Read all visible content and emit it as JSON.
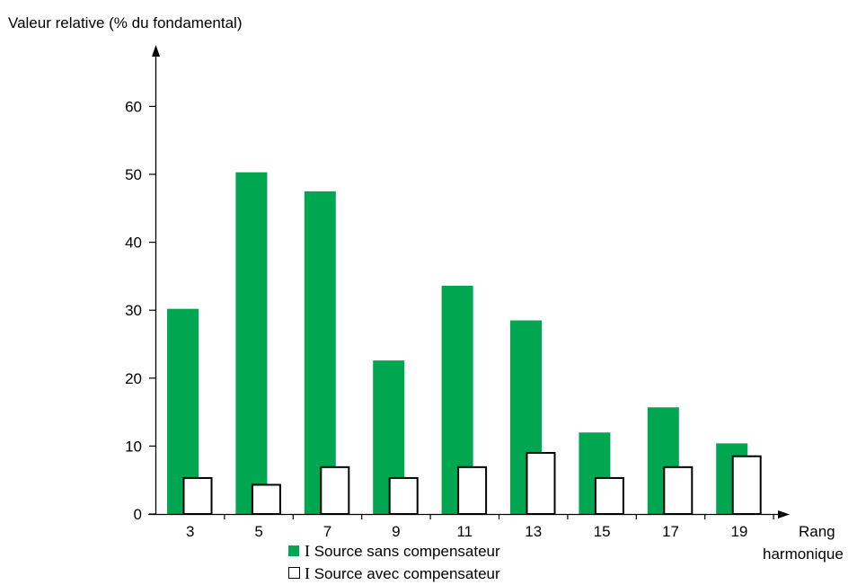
{
  "chart_data": {
    "type": "bar",
    "ylabel": "Valeur relative (% du fondamental)",
    "xlabel_line1": "Rang",
    "xlabel_line2": "harmonique",
    "categories": [
      "3",
      "5",
      "7",
      "9",
      "11",
      "13",
      "15",
      "17",
      "19"
    ],
    "yticks": [
      0,
      10,
      20,
      30,
      40,
      50,
      60
    ],
    "ylim": [
      0,
      60
    ],
    "grid": false,
    "legend_position": "bottom",
    "series": [
      {
        "name": "I Source sans compensateur",
        "legend_prefix": "I",
        "legend_suffix": " Source sans compensateur",
        "color": "#00a650",
        "style": "filled",
        "values": [
          30.2,
          50.3,
          47.5,
          22.6,
          33.6,
          28.5,
          12.0,
          15.7,
          10.4
        ]
      },
      {
        "name": "I Source avec compensateur",
        "legend_prefix": "I",
        "legend_suffix": " Source avec compensateur",
        "color": "#ffffff",
        "stroke": "#000000",
        "style": "outlined",
        "values": [
          5.3,
          4.3,
          6.9,
          5.3,
          6.9,
          9.0,
          5.3,
          6.9,
          8.5
        ]
      }
    ]
  }
}
